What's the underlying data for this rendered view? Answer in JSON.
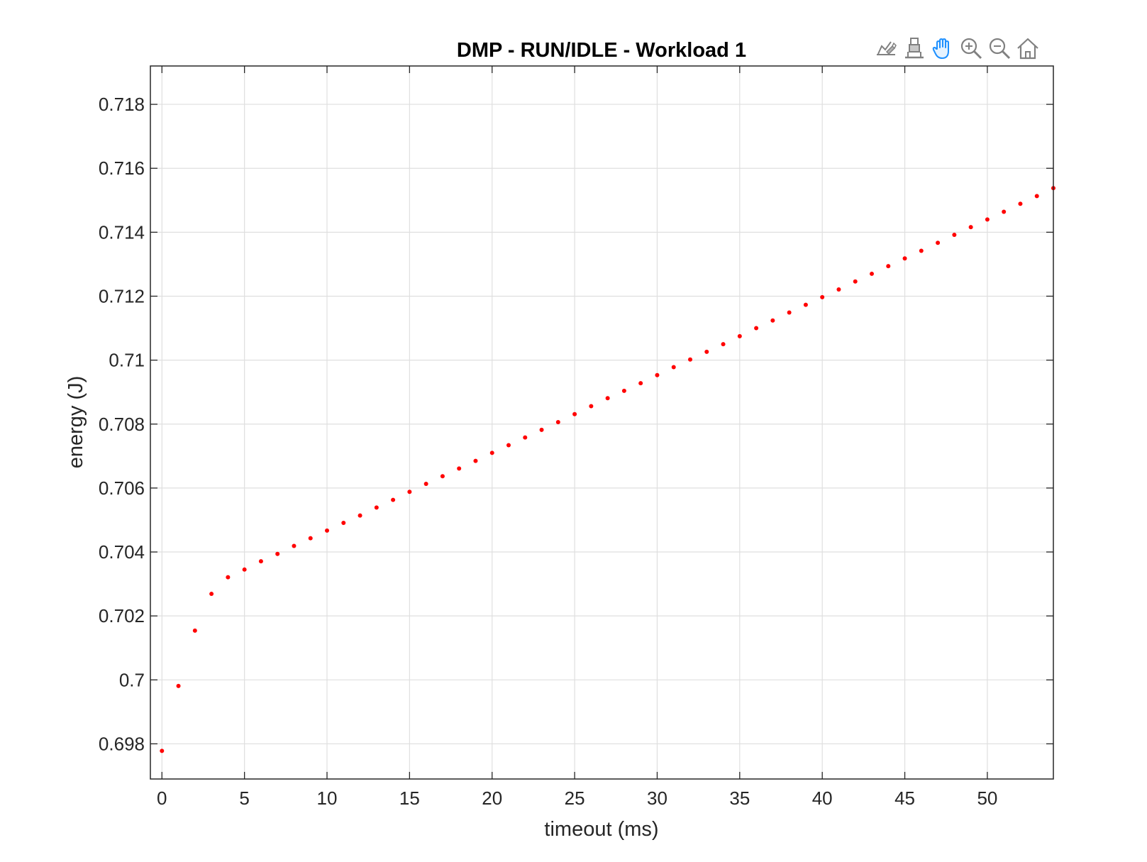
{
  "figure": {
    "title": "DMP - RUN/IDLE - Workload 1",
    "toolbar": [
      {
        "name": "brush-data-icon",
        "label": "Brush/Select Data"
      },
      {
        "name": "data-tips-icon",
        "label": "Data Tips"
      },
      {
        "name": "pan-icon",
        "label": "Pan"
      },
      {
        "name": "zoom-in-icon",
        "label": "Zoom In"
      },
      {
        "name": "zoom-out-icon",
        "label": "Zoom Out"
      },
      {
        "name": "home-icon",
        "label": "Restore View"
      }
    ],
    "colors": {
      "marker": "#ff0000",
      "pan_active": "#1e90ff",
      "toolbar_icon": "#808080",
      "grid": "#dfdfdf",
      "axes": "#262626"
    }
  },
  "chart_data": {
    "type": "scatter",
    "title": "DMP - RUN/IDLE - Workload 1",
    "xlabel": "timeout (ms)",
    "ylabel": "energy (J)",
    "xlim": [
      -0.7,
      54
    ],
    "ylim": [
      0.6969,
      0.7192
    ],
    "xticks": [
      0,
      5,
      10,
      15,
      20,
      25,
      30,
      35,
      40,
      45,
      50
    ],
    "xtick_labels": [
      "0",
      "5",
      "10",
      "15",
      "20",
      "25",
      "30",
      "35",
      "40",
      "45",
      "50"
    ],
    "yticks": [
      0.698,
      0.7,
      0.702,
      0.704,
      0.706,
      0.708,
      0.71,
      0.712,
      0.714,
      0.716,
      0.718
    ],
    "ytick_labels": [
      "0.698",
      "0.7",
      "0.702",
      "0.704",
      "0.706",
      "0.708",
      "0.71",
      "0.712",
      "0.714",
      "0.716",
      "0.718"
    ],
    "grid": true,
    "box": true,
    "series": [
      {
        "marker": "point",
        "color": "#ff0000",
        "x": [
          0,
          1,
          2,
          3,
          4,
          5,
          6,
          7,
          8,
          9,
          10,
          11,
          12,
          13,
          14,
          15,
          16,
          17,
          18,
          19,
          20,
          21,
          22,
          23,
          24,
          25,
          26,
          27,
          28,
          29,
          30,
          31,
          32,
          33,
          34,
          35,
          36,
          37,
          38,
          39,
          40,
          41,
          42,
          43,
          44,
          45,
          46,
          47,
          48,
          49,
          50,
          51,
          52,
          53,
          54
        ],
        "y": [
          0.69778,
          0.69981,
          0.70154,
          0.70269,
          0.70321,
          0.70345,
          0.70371,
          0.70394,
          0.70419,
          0.70443,
          0.70467,
          0.70491,
          0.70514,
          0.70539,
          0.70563,
          0.70588,
          0.70613,
          0.70637,
          0.70661,
          0.70685,
          0.7071,
          0.70734,
          0.70758,
          0.70782,
          0.70806,
          0.70831,
          0.70856,
          0.70881,
          0.70904,
          0.70928,
          0.70953,
          0.70978,
          0.71002,
          0.71026,
          0.7105,
          0.71075,
          0.711,
          0.71124,
          0.71149,
          0.71173,
          0.71197,
          0.71221,
          0.71246,
          0.7127,
          0.71294,
          0.71318,
          0.71342,
          0.71367,
          0.71392,
          0.71416,
          0.7144,
          0.71464,
          0.71489,
          0.71513,
          0.71538
        ]
      }
    ]
  }
}
